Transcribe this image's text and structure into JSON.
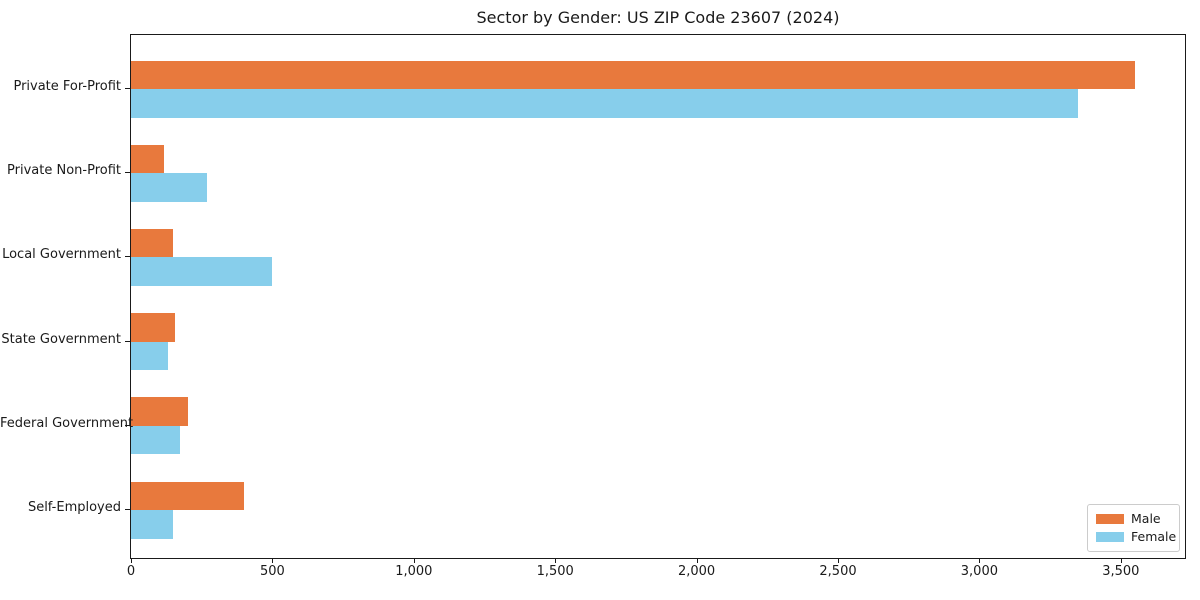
{
  "title": "Sector by Gender: US ZIP Code 23607 (2024)",
  "colors": {
    "male": "#E8793D",
    "female": "#87CEEB",
    "axis": "#1a1a1a",
    "legend_border": "#cccccc",
    "background": "#ffffff"
  },
  "chart_data": {
    "type": "bar",
    "orientation": "horizontal",
    "title": "Sector by Gender: US ZIP Code 23607 (2024)",
    "categories": [
      "Private For-Profit",
      "Private Non-Profit",
      "Local Government",
      "State Government",
      "Federal Government",
      "Self-Employed"
    ],
    "series": [
      {
        "name": "Male",
        "color": "#E8793D",
        "values": [
          3550,
          115,
          150,
          155,
          200,
          400
        ]
      },
      {
        "name": "Female",
        "color": "#87CEEB",
        "values": [
          3350,
          270,
          500,
          130,
          175,
          150
        ]
      }
    ],
    "xlabel": "",
    "ylabel": "",
    "xlim": [
      0,
      3727
    ],
    "xticks": [
      0,
      500,
      1000,
      1500,
      2000,
      2500,
      3000,
      3500
    ],
    "xtick_labels": [
      "0",
      "500",
      "1,000",
      "1,500",
      "2,000",
      "2,500",
      "3,000",
      "3,500"
    ],
    "grid": false,
    "legend": {
      "position": "lower right",
      "entries": [
        "Male",
        "Female"
      ]
    }
  }
}
